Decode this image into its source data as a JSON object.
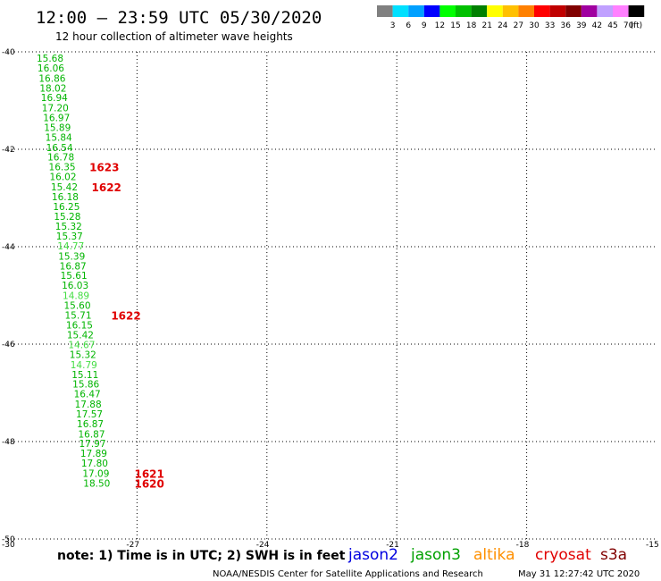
{
  "header": {
    "title": "12:00 – 23:59 UTC 05/30/2020",
    "subtitle": "12 hour collection of altimeter wave heights"
  },
  "colorbar": {
    "colors": [
      "#808080",
      "#00e0ff",
      "#00a0ff",
      "#0000ff",
      "#00ff00",
      "#00c000",
      "#008000",
      "#ffff00",
      "#ffc000",
      "#ff8000",
      "#ff0000",
      "#c00000",
      "#800000",
      "#a000a0",
      "#c0a0ff",
      "#ff80ff",
      "#000000"
    ],
    "labels": [
      "3",
      "6",
      "9",
      "12",
      "15",
      "18",
      "21",
      "24",
      "27",
      "30",
      "33",
      "36",
      "39",
      "42",
      "45",
      "70"
    ],
    "unit": "(ft)"
  },
  "chart_data": {
    "type": "scatter",
    "title": "12 hour collection of altimeter wave heights",
    "xlim": [
      -30,
      -15
    ],
    "ylim": [
      -50,
      -40
    ],
    "x_ticks": [
      "-30",
      "-27",
      "-24",
      "-21",
      "-18",
      "-15"
    ],
    "y_ticks": [
      "-40",
      "-42",
      "-44",
      "-46",
      "-48",
      "-50"
    ],
    "grid": true,
    "swh_points": [
      {
        "x": -29.32,
        "y": -40.13,
        "v": "15.68",
        "c": "#00b400"
      },
      {
        "x": -29.3,
        "y": -40.33,
        "v": "16.06",
        "c": "#00b400"
      },
      {
        "x": -29.27,
        "y": -40.54,
        "v": "16.86",
        "c": "#00b400"
      },
      {
        "x": -29.25,
        "y": -40.74,
        "v": "18.02",
        "c": "#00b400"
      },
      {
        "x": -29.22,
        "y": -40.94,
        "v": "16.94",
        "c": "#00b400"
      },
      {
        "x": -29.2,
        "y": -41.15,
        "v": "17.20",
        "c": "#00b400"
      },
      {
        "x": -29.17,
        "y": -41.35,
        "v": "16.97",
        "c": "#00b400"
      },
      {
        "x": -29.15,
        "y": -41.55,
        "v": "15.89",
        "c": "#00b400"
      },
      {
        "x": -29.12,
        "y": -41.75,
        "v": "15.84",
        "c": "#00b400"
      },
      {
        "x": -29.1,
        "y": -41.96,
        "v": "16.54",
        "c": "#00b400"
      },
      {
        "x": -29.07,
        "y": -42.16,
        "v": "16.78",
        "c": "#00b400"
      },
      {
        "x": -29.04,
        "y": -42.36,
        "v": "16.35",
        "c": "#00b400"
      },
      {
        "x": -29.02,
        "y": -42.56,
        "v": "16.02",
        "c": "#00b400"
      },
      {
        "x": -28.99,
        "y": -42.77,
        "v": "15.42",
        "c": "#00b400"
      },
      {
        "x": -28.97,
        "y": -42.97,
        "v": "16.18",
        "c": "#00b400"
      },
      {
        "x": -28.94,
        "y": -43.17,
        "v": "16.25",
        "c": "#00b400"
      },
      {
        "x": -28.92,
        "y": -43.38,
        "v": "15.28",
        "c": "#00b400"
      },
      {
        "x": -28.89,
        "y": -43.58,
        "v": "15.32",
        "c": "#00b400"
      },
      {
        "x": -28.87,
        "y": -43.78,
        "v": "15.37",
        "c": "#00b400"
      },
      {
        "x": -28.84,
        "y": -43.98,
        "v": "14.77",
        "c": "#44dd44"
      },
      {
        "x": -28.82,
        "y": -44.19,
        "v": "15.39",
        "c": "#00b400"
      },
      {
        "x": -28.79,
        "y": -44.39,
        "v": "16.87",
        "c": "#00b400"
      },
      {
        "x": -28.77,
        "y": -44.59,
        "v": "15.61",
        "c": "#00b400"
      },
      {
        "x": -28.74,
        "y": -44.79,
        "v": "16.03",
        "c": "#00b400"
      },
      {
        "x": -28.72,
        "y": -45.0,
        "v": "14.89",
        "c": "#44dd44"
      },
      {
        "x": -28.69,
        "y": -45.2,
        "v": "15.60",
        "c": "#00b400"
      },
      {
        "x": -28.67,
        "y": -45.4,
        "v": "15.71",
        "c": "#00b400"
      },
      {
        "x": -28.64,
        "y": -45.61,
        "v": "16.15",
        "c": "#00b400"
      },
      {
        "x": -28.62,
        "y": -45.81,
        "v": "15.42",
        "c": "#00b400"
      },
      {
        "x": -28.59,
        "y": -46.01,
        "v": "14.67",
        "c": "#44dd44"
      },
      {
        "x": -28.56,
        "y": -46.21,
        "v": "15.32",
        "c": "#00b400"
      },
      {
        "x": -28.54,
        "y": -46.42,
        "v": "14.79",
        "c": "#44dd44"
      },
      {
        "x": -28.51,
        "y": -46.62,
        "v": "15.11",
        "c": "#00b400"
      },
      {
        "x": -28.49,
        "y": -46.82,
        "v": "15.86",
        "c": "#00b400"
      },
      {
        "x": -28.46,
        "y": -47.02,
        "v": "16.47",
        "c": "#00b400"
      },
      {
        "x": -28.44,
        "y": -47.23,
        "v": "17.88",
        "c": "#00b400"
      },
      {
        "x": -28.41,
        "y": -47.43,
        "v": "17.57",
        "c": "#00b400"
      },
      {
        "x": -28.39,
        "y": -47.63,
        "v": "16.87",
        "c": "#00b400"
      },
      {
        "x": -28.36,
        "y": -47.84,
        "v": "16.87",
        "c": "#00b400"
      },
      {
        "x": -28.34,
        "y": -48.04,
        "v": "17.97",
        "c": "#00b400"
      },
      {
        "x": -28.31,
        "y": -48.24,
        "v": "17.89",
        "c": "#00b400"
      },
      {
        "x": -28.29,
        "y": -48.44,
        "v": "17.80",
        "c": "#00b400"
      },
      {
        "x": -28.26,
        "y": -48.65,
        "v": "17.09",
        "c": "#00b400"
      },
      {
        "x": -28.24,
        "y": -48.85,
        "v": "18.50",
        "c": "#00b400"
      }
    ],
    "time_labels": [
      {
        "x": -28.1,
        "y": -42.36,
        "v": "1623"
      },
      {
        "x": -28.05,
        "y": -42.77,
        "v": "1622"
      },
      {
        "x": -27.6,
        "y": -45.4,
        "v": "1622"
      },
      {
        "x": -27.06,
        "y": -48.65,
        "v": "1621"
      },
      {
        "x": -27.06,
        "y": -48.85,
        "v": "1620"
      }
    ]
  },
  "note": {
    "text": "note:  1) Time is in UTC; 2) SWH is in feet",
    "satellites": [
      {
        "name": "jason2",
        "color": "#0000e0"
      },
      {
        "name": "jason3",
        "color": "#00a000"
      },
      {
        "name": "altika",
        "color": "#ff9000"
      },
      {
        "name": "cryosat",
        "color": "#e00000"
      },
      {
        "name": "s3a",
        "color": "#800000"
      }
    ]
  },
  "footer": {
    "credit": "NOAA/NESDIS Center for Satellite Applications and Research",
    "timestamp": "May 31 12:27:42 UTC 2020"
  }
}
